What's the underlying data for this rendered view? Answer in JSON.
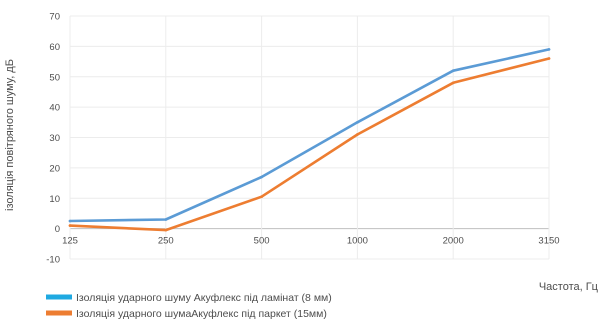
{
  "chart_data": {
    "type": "line",
    "title": "",
    "categories": [
      "125",
      "250",
      "500",
      "1000",
      "2000",
      "3150"
    ],
    "xlabel": "Частота, Гц",
    "ylabel": "ізоляція повітряного шуму, дБ",
    "ylim": [
      -10,
      70
    ],
    "yticks": [
      -10,
      0,
      10,
      20,
      30,
      40,
      50,
      60,
      70
    ],
    "grid": true,
    "legend_position": "bottom-left",
    "series": [
      {
        "name": "Ізоляція ударного шуму Акуфлекс під ламінат (8 мм)",
        "color": "#5b9bd5",
        "legend_color": "#1fa9e1",
        "values": [
          2.5,
          3,
          17,
          35,
          52,
          59
        ]
      },
      {
        "name": "Ізоляція ударного шумаАкуфлекс під паркет (15мм)",
        "color": "#ed7d31",
        "legend_color": "#ed7d31",
        "values": [
          1,
          -0.5,
          10.5,
          31,
          48,
          56
        ]
      }
    ]
  }
}
